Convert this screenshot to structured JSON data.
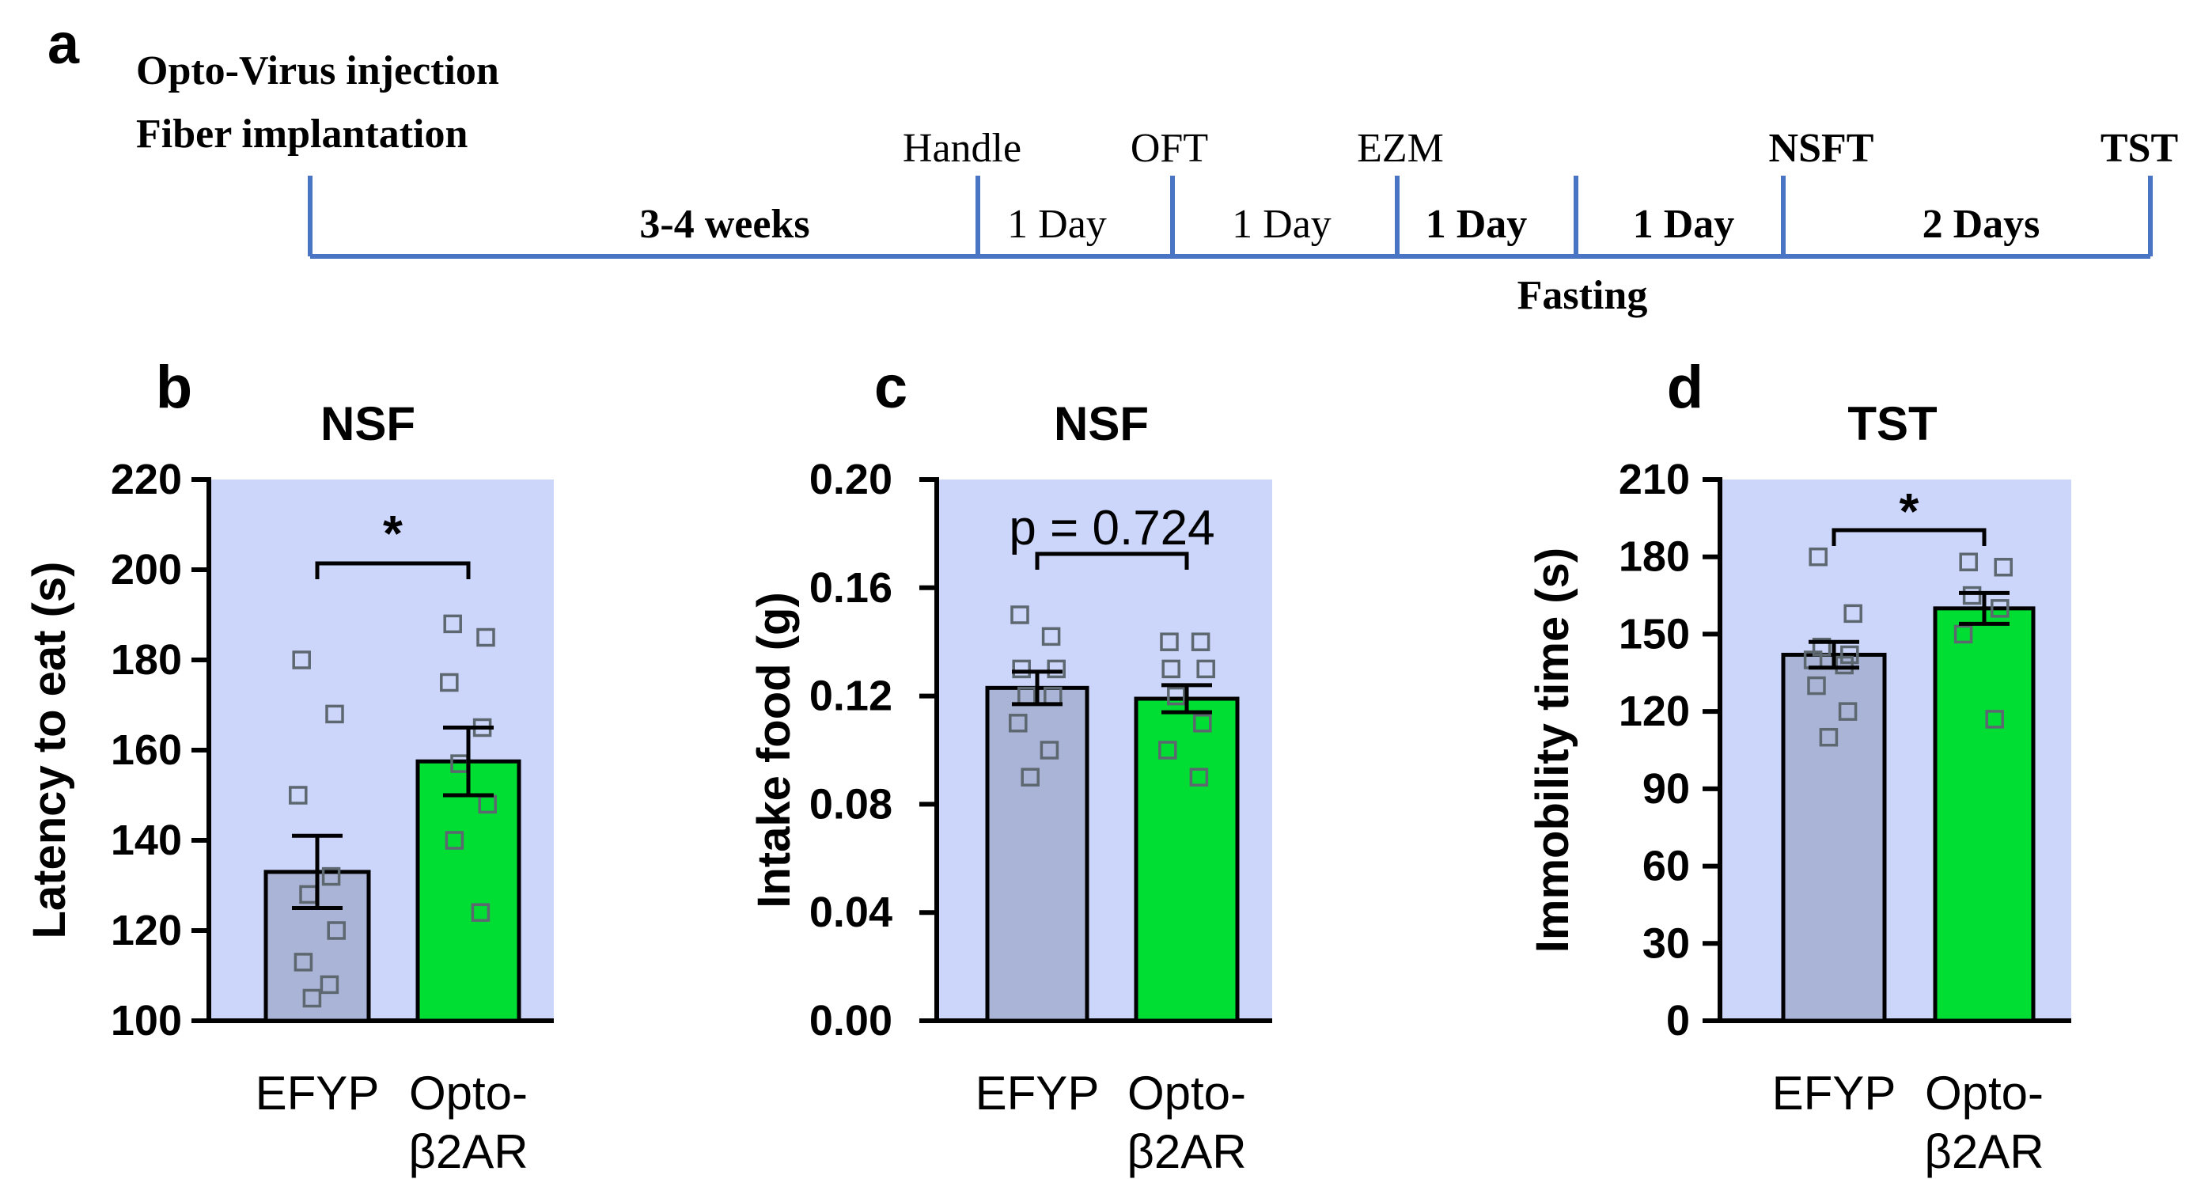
{
  "timeline": {
    "panel_letter": "a",
    "surgery_line1": "Opto-Virus injection",
    "surgery_line2": "Fiber implantation",
    "events": [
      {
        "label": "Handle",
        "bold": false
      },
      {
        "label": "OFT",
        "bold": false
      },
      {
        "label": "EZM",
        "bold": false
      },
      {
        "label": "NSFT",
        "bold": true
      },
      {
        "label": "TST",
        "bold": true
      }
    ],
    "intervals": [
      {
        "label": "3-4 weeks",
        "bold": true
      },
      {
        "label": "1 Day",
        "bold": false
      },
      {
        "label": "1 Day",
        "bold": false
      },
      {
        "label": "1 Day",
        "bold": true
      },
      {
        "label": "1 Day",
        "bold": true
      },
      {
        "label": "2 Days",
        "bold": true
      }
    ],
    "fasting_label": "Fasting"
  },
  "colors": {
    "plot_bg": "#ccd6fa",
    "axis_line": "#4a74c4",
    "efyp_bar": "#aab4d6",
    "opto_bar": "#00dd33",
    "point_stroke": "#5c6770",
    "text": "#000000"
  },
  "chart_data": [
    {
      "panel": "b",
      "type": "bar",
      "title": "NSF",
      "ylabel": "Latency to eat (s)",
      "ylim": [
        100,
        220
      ],
      "yticks": [
        "100",
        "120",
        "140",
        "160",
        "180",
        "200",
        "220"
      ],
      "categories": [
        {
          "line1": "EFYP",
          "line2": ""
        },
        {
          "line1": "Opto-",
          "line2": "β2AR"
        }
      ],
      "values": [
        133,
        157.5
      ],
      "sem": [
        8,
        7.5
      ],
      "points": [
        [
          180,
          168,
          150,
          132,
          128,
          120,
          113,
          108,
          105
        ],
        [
          188,
          185,
          175,
          165,
          157,
          148,
          140,
          124
        ]
      ],
      "annotation": "*"
    },
    {
      "panel": "c",
      "type": "bar",
      "title": "NSF",
      "ylabel": "Intake food (g)",
      "ylim": [
        0.0,
        0.2
      ],
      "yticks": [
        "0.00",
        "0.04",
        "0.08",
        "0.12",
        "0.16",
        "0.20"
      ],
      "categories": [
        {
          "line1": "EFYP",
          "line2": ""
        },
        {
          "line1": "Opto-",
          "line2": "β2AR"
        }
      ],
      "values": [
        0.123,
        0.119
      ],
      "sem": [
        0.006,
        0.005
      ],
      "points": [
        [
          0.15,
          0.142,
          0.13,
          0.13,
          0.12,
          0.12,
          0.11,
          0.1,
          0.09
        ],
        [
          0.14,
          0.14,
          0.13,
          0.13,
          0.12,
          0.11,
          0.1,
          0.09
        ]
      ],
      "annotation": "p = 0.724"
    },
    {
      "panel": "d",
      "type": "bar",
      "title": "TST",
      "ylabel": "Immobility time  (s)",
      "ylim": [
        0,
        210
      ],
      "yticks": [
        "0",
        "30",
        "60",
        "90",
        "120",
        "150",
        "180",
        "210"
      ],
      "categories": [
        {
          "line1": "EFYP",
          "line2": ""
        },
        {
          "line1": "Opto-",
          "line2": "β2AR"
        }
      ],
      "values": [
        142,
        160
      ],
      "sem": [
        5,
        6
      ],
      "points": [
        [
          180,
          158,
          145,
          142,
          140,
          138,
          130,
          120,
          110
        ],
        [
          178,
          176,
          165,
          160,
          150,
          117
        ]
      ],
      "annotation": "*"
    }
  ]
}
